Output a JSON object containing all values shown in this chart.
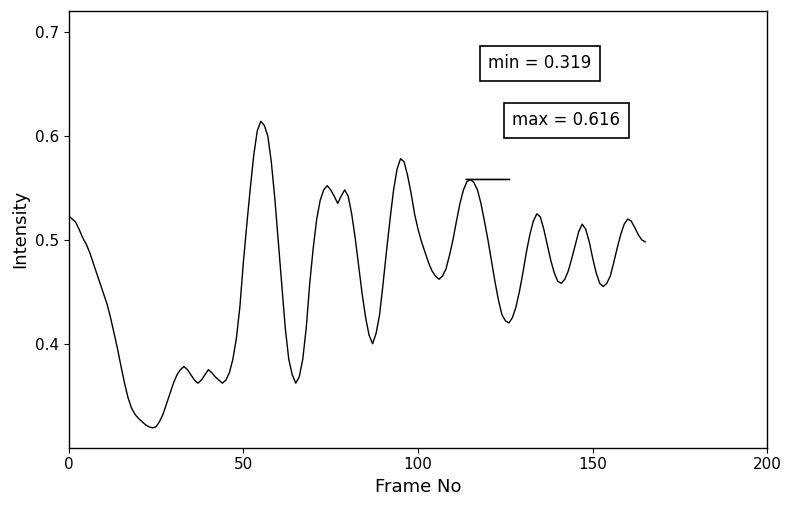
{
  "title": "",
  "xlabel": "Frame No",
  "ylabel": "Intensity",
  "xlim": [
    0,
    200
  ],
  "ylim": [
    0.3,
    0.72
  ],
  "yticks": [
    0.4,
    0.5,
    0.6,
    0.7
  ],
  "xticks": [
    0,
    50,
    100,
    150,
    200
  ],
  "line_color": "#000000",
  "line_width": 1.0,
  "min_val": 0.319,
  "max_val": 0.616,
  "annotation_min": "min = 0.319",
  "annotation_max": "max = 0.616",
  "bg_color": "#ffffff",
  "font_color": "#000000",
  "font_size_labels": 13,
  "font_size_ticks": 11,
  "keypoints": [
    [
      0,
      0.523
    ],
    [
      1,
      0.52
    ],
    [
      2,
      0.517
    ],
    [
      3,
      0.51
    ],
    [
      4,
      0.502
    ],
    [
      5,
      0.496
    ],
    [
      6,
      0.488
    ],
    [
      7,
      0.478
    ],
    [
      8,
      0.468
    ],
    [
      9,
      0.458
    ],
    [
      10,
      0.448
    ],
    [
      11,
      0.438
    ],
    [
      12,
      0.425
    ],
    [
      13,
      0.41
    ],
    [
      14,
      0.395
    ],
    [
      15,
      0.378
    ],
    [
      16,
      0.362
    ],
    [
      17,
      0.348
    ],
    [
      18,
      0.338
    ],
    [
      19,
      0.332
    ],
    [
      20,
      0.328
    ],
    [
      21,
      0.325
    ],
    [
      22,
      0.322
    ],
    [
      23,
      0.32
    ],
    [
      24,
      0.319
    ],
    [
      25,
      0.32
    ],
    [
      26,
      0.325
    ],
    [
      27,
      0.332
    ],
    [
      28,
      0.342
    ],
    [
      29,
      0.352
    ],
    [
      30,
      0.362
    ],
    [
      31,
      0.37
    ],
    [
      32,
      0.375
    ],
    [
      33,
      0.378
    ],
    [
      34,
      0.375
    ],
    [
      35,
      0.37
    ],
    [
      36,
      0.365
    ],
    [
      37,
      0.362
    ],
    [
      38,
      0.365
    ],
    [
      39,
      0.37
    ],
    [
      40,
      0.375
    ],
    [
      41,
      0.372
    ],
    [
      42,
      0.368
    ],
    [
      43,
      0.365
    ],
    [
      44,
      0.362
    ],
    [
      45,
      0.365
    ],
    [
      46,
      0.372
    ],
    [
      47,
      0.385
    ],
    [
      48,
      0.405
    ],
    [
      49,
      0.435
    ],
    [
      50,
      0.478
    ],
    [
      51,
      0.515
    ],
    [
      52,
      0.55
    ],
    [
      53,
      0.582
    ],
    [
      54,
      0.605
    ],
    [
      55,
      0.614
    ],
    [
      56,
      0.61
    ],
    [
      57,
      0.6
    ],
    [
      58,
      0.575
    ],
    [
      59,
      0.54
    ],
    [
      60,
      0.498
    ],
    [
      61,
      0.455
    ],
    [
      62,
      0.415
    ],
    [
      63,
      0.385
    ],
    [
      64,
      0.37
    ],
    [
      65,
      0.362
    ],
    [
      66,
      0.368
    ],
    [
      67,
      0.385
    ],
    [
      68,
      0.415
    ],
    [
      69,
      0.458
    ],
    [
      70,
      0.492
    ],
    [
      71,
      0.52
    ],
    [
      72,
      0.538
    ],
    [
      73,
      0.548
    ],
    [
      74,
      0.552
    ],
    [
      75,
      0.548
    ],
    [
      76,
      0.542
    ],
    [
      77,
      0.535
    ],
    [
      78,
      0.542
    ],
    [
      79,
      0.548
    ],
    [
      80,
      0.542
    ],
    [
      81,
      0.525
    ],
    [
      82,
      0.502
    ],
    [
      83,
      0.475
    ],
    [
      84,
      0.448
    ],
    [
      85,
      0.425
    ],
    [
      86,
      0.408
    ],
    [
      87,
      0.4
    ],
    [
      88,
      0.41
    ],
    [
      89,
      0.428
    ],
    [
      90,
      0.458
    ],
    [
      91,
      0.49
    ],
    [
      92,
      0.52
    ],
    [
      93,
      0.548
    ],
    [
      94,
      0.568
    ],
    [
      95,
      0.578
    ],
    [
      96,
      0.575
    ],
    [
      97,
      0.562
    ],
    [
      98,
      0.545
    ],
    [
      99,
      0.525
    ],
    [
      100,
      0.51
    ],
    [
      101,
      0.498
    ],
    [
      102,
      0.488
    ],
    [
      103,
      0.478
    ],
    [
      104,
      0.47
    ],
    [
      105,
      0.465
    ],
    [
      106,
      0.462
    ],
    [
      107,
      0.465
    ],
    [
      108,
      0.472
    ],
    [
      109,
      0.485
    ],
    [
      110,
      0.5
    ],
    [
      111,
      0.518
    ],
    [
      112,
      0.535
    ],
    [
      113,
      0.548
    ],
    [
      114,
      0.556
    ],
    [
      115,
      0.558
    ],
    [
      116,
      0.555
    ],
    [
      117,
      0.548
    ],
    [
      118,
      0.535
    ],
    [
      119,
      0.518
    ],
    [
      120,
      0.5
    ],
    [
      121,
      0.48
    ],
    [
      122,
      0.46
    ],
    [
      123,
      0.442
    ],
    [
      124,
      0.428
    ],
    [
      125,
      0.422
    ],
    [
      126,
      0.42
    ],
    [
      127,
      0.425
    ],
    [
      128,
      0.435
    ],
    [
      129,
      0.45
    ],
    [
      130,
      0.468
    ],
    [
      131,
      0.488
    ],
    [
      132,
      0.505
    ],
    [
      133,
      0.518
    ],
    [
      134,
      0.525
    ],
    [
      135,
      0.522
    ],
    [
      136,
      0.51
    ],
    [
      137,
      0.495
    ],
    [
      138,
      0.48
    ],
    [
      139,
      0.468
    ],
    [
      140,
      0.46
    ],
    [
      141,
      0.458
    ],
    [
      142,
      0.462
    ],
    [
      143,
      0.47
    ],
    [
      144,
      0.482
    ],
    [
      145,
      0.495
    ],
    [
      146,
      0.508
    ],
    [
      147,
      0.515
    ],
    [
      148,
      0.51
    ],
    [
      149,
      0.498
    ],
    [
      150,
      0.482
    ],
    [
      151,
      0.468
    ],
    [
      152,
      0.458
    ],
    [
      153,
      0.455
    ],
    [
      154,
      0.458
    ],
    [
      155,
      0.465
    ],
    [
      156,
      0.478
    ],
    [
      157,
      0.492
    ],
    [
      158,
      0.505
    ],
    [
      159,
      0.515
    ],
    [
      160,
      0.52
    ],
    [
      161,
      0.518
    ],
    [
      162,
      0.512
    ],
    [
      163,
      0.505
    ],
    [
      164,
      0.5
    ],
    [
      165,
      0.498
    ]
  ]
}
